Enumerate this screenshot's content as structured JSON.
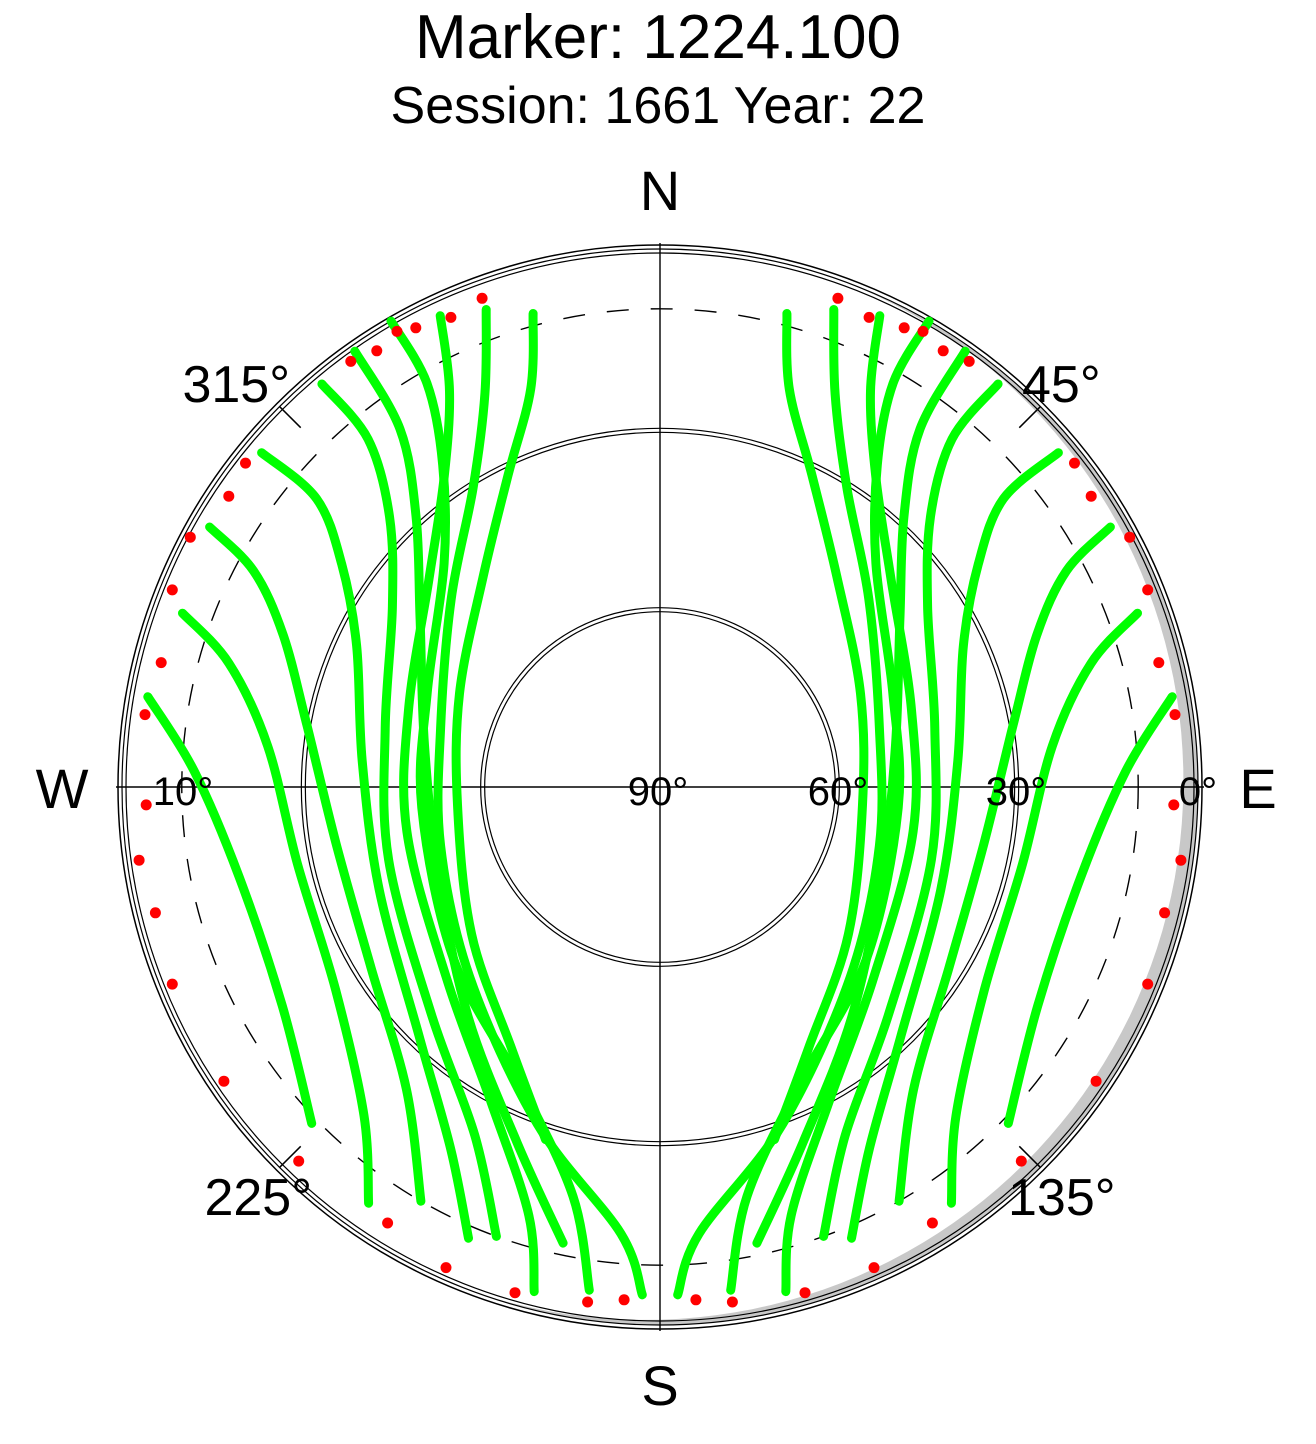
{
  "title": "Marker: 1224.100",
  "subtitle": "Session: 1661 Year: 22",
  "chart_data": {
    "type": "scatter",
    "projection": "polar skyplot (azimuth clockwise from North, elevation 0° at rim to 90° at centre)",
    "compass_labels": {
      "north": "N",
      "east": "E",
      "south": "S",
      "west": "W"
    },
    "azimuth_tick_labels": [
      "45°",
      "135°",
      "225°",
      "315°"
    ],
    "azimuth_ticks_deg": [
      45,
      135,
      225,
      315
    ],
    "elevation_tick_labels_east": [
      "90°",
      "60°",
      "30°",
      "0°"
    ],
    "elevation_ticks_east_deg": [
      90,
      60,
      30,
      0
    ],
    "elevation_tick_label_west": "10°",
    "elevation_tick_west_deg": 10,
    "elevation_circles_deg": [
      0,
      30,
      60
    ],
    "cutoff_dashed_elevation_deg": 10,
    "grid": true,
    "colors": {
      "track": "#00ff00",
      "low_elevation_points": "#ff0000",
      "mask": "#c8c8c8",
      "grid": "#000000"
    },
    "series": [
      {
        "color": "#00ff00",
        "tracks_az_el_deg": [
          {
            "points": [
              [
                30,
                0
              ],
              [
                30,
                12
              ],
              [
                34,
                25
              ],
              [
                44,
                38
              ],
              [
                68,
                48
              ],
              [
                95,
                50
              ],
              [
                130,
                45
              ],
              [
                155,
                35
              ],
              [
                168,
                20
              ],
              [
                172,
                5
              ]
            ]
          },
          {
            "points": [
              [
                25,
                3
              ],
              [
                28,
                15
              ],
              [
                35,
                27
              ],
              [
                48,
                38
              ],
              [
                73,
                46
              ],
              [
                100,
                47
              ],
              [
                132,
                42
              ],
              [
                152,
                30
              ],
              [
                163,
                15
              ],
              [
                166,
                3
              ]
            ]
          },
          {
            "points": [
              [
                40,
                2
              ],
              [
                40,
                14
              ],
              [
                45,
                26
              ],
              [
                56,
                36
              ],
              [
                78,
                43
              ],
              [
                105,
                43
              ],
              [
                135,
                36
              ],
              [
                152,
                24
              ],
              [
                160,
                10
              ]
            ]
          },
          {
            "points": [
              [
                50,
                3
              ],
              [
                50,
                15
              ],
              [
                55,
                25
              ],
              [
                65,
                34
              ],
              [
                85,
                40
              ],
              [
                110,
                40
              ],
              [
                136,
                32
              ],
              [
                150,
                20
              ],
              [
                157,
                8
              ]
            ]
          },
          {
            "points": [
              [
                60,
                3
              ],
              [
                62,
                13
              ],
              [
                68,
                22
              ],
              [
                80,
                30
              ],
              [
                100,
                35
              ],
              [
                122,
                33
              ],
              [
                140,
                24
              ],
              [
                150,
                10
              ]
            ]
          },
          {
            "points": [
              [
                70,
                5
              ],
              [
                74,
                15
              ],
              [
                84,
                24
              ],
              [
                102,
                28
              ],
              [
                122,
                26
              ],
              [
                138,
                16
              ],
              [
                145,
                5
              ]
            ]
          },
          {
            "points": [
              [
                80,
                3
              ],
              [
                88,
                12
              ],
              [
                102,
                18
              ],
              [
                120,
                17
              ],
              [
                134,
                9
              ]
            ]
          },
          {
            "points": [
              [
                20,
                5
              ],
              [
                24,
                18
              ],
              [
                32,
                31
              ],
              [
                48,
                43
              ],
              [
                75,
                52
              ],
              [
                105,
                52
              ],
              [
                135,
                45
              ],
              [
                160,
                30
              ],
              [
                175,
                15
              ],
              [
                178,
                5
              ]
            ]
          },
          {
            "points": [
              [
                15,
                8
              ],
              [
                18,
                20
              ],
              [
                26,
                32
              ],
              [
                40,
                44
              ],
              [
                65,
                53
              ],
              [
                95,
                56
              ],
              [
                128,
                50
              ],
              [
                150,
                40
              ],
              [
                162,
                28
              ]
            ]
          },
          {
            "points": [
              [
                35,
                1
              ],
              [
                36,
                16
              ],
              [
                42,
                29
              ],
              [
                55,
                41
              ],
              [
                80,
                50
              ],
              [
                112,
                50
              ],
              [
                140,
                40
              ],
              [
                158,
                26
              ],
              [
                168,
                12
              ]
            ]
          },
          {
            "points": [
              [
                330,
                0
              ],
              [
                330,
                12
              ],
              [
                326,
                25
              ],
              [
                316,
                38
              ],
              [
                292,
                48
              ],
              [
                265,
                50
              ],
              [
                230,
                45
              ],
              [
                205,
                35
              ],
              [
                192,
                20
              ],
              [
                188,
                5
              ]
            ]
          },
          {
            "points": [
              [
                335,
                3
              ],
              [
                332,
                15
              ],
              [
                325,
                27
              ],
              [
                312,
                38
              ],
              [
                287,
                46
              ],
              [
                260,
                47
              ],
              [
                228,
                42
              ],
              [
                208,
                30
              ],
              [
                197,
                15
              ],
              [
                194,
                3
              ]
            ]
          },
          {
            "points": [
              [
                320,
                2
              ],
              [
                320,
                14
              ],
              [
                315,
                26
              ],
              [
                304,
                36
              ],
              [
                282,
                43
              ],
              [
                255,
                43
              ],
              [
                225,
                36
              ],
              [
                208,
                24
              ],
              [
                200,
                10
              ]
            ]
          },
          {
            "points": [
              [
                310,
                3
              ],
              [
                310,
                15
              ],
              [
                305,
                25
              ],
              [
                295,
                34
              ],
              [
                275,
                40
              ],
              [
                250,
                40
              ],
              [
                224,
                32
              ],
              [
                210,
                20
              ],
              [
                203,
                8
              ]
            ]
          },
          {
            "points": [
              [
                300,
                3
              ],
              [
                298,
                13
              ],
              [
                292,
                22
              ],
              [
                280,
                30
              ],
              [
                260,
                35
              ],
              [
                238,
                33
              ],
              [
                220,
                24
              ],
              [
                210,
                10
              ]
            ]
          },
          {
            "points": [
              [
                290,
                5
              ],
              [
                286,
                15
              ],
              [
                276,
                24
              ],
              [
                258,
                28
              ],
              [
                238,
                26
              ],
              [
                222,
                16
              ],
              [
                215,
                5
              ]
            ]
          },
          {
            "points": [
              [
                280,
                3
              ],
              [
                272,
                12
              ],
              [
                258,
                18
              ],
              [
                240,
                17
              ],
              [
                226,
                9
              ]
            ]
          },
          {
            "points": [
              [
                340,
                5
              ],
              [
                336,
                18
              ],
              [
                328,
                31
              ],
              [
                312,
                43
              ],
              [
                285,
                52
              ],
              [
                255,
                52
              ],
              [
                225,
                45
              ],
              [
                200,
                30
              ],
              [
                185,
                15
              ],
              [
                182,
                5
              ]
            ]
          },
          {
            "points": [
              [
                345,
                8
              ],
              [
                342,
                20
              ],
              [
                334,
                32
              ],
              [
                320,
                44
              ],
              [
                295,
                53
              ],
              [
                265,
                56
              ],
              [
                232,
                50
              ],
              [
                210,
                40
              ],
              [
                198,
                28
              ]
            ]
          },
          {
            "points": [
              [
                325,
                1
              ],
              [
                324,
                16
              ],
              [
                318,
                29
              ],
              [
                305,
                41
              ],
              [
                280,
                50
              ],
              [
                248,
                50
              ],
              [
                220,
                40
              ],
              [
                202,
                26
              ],
              [
                192,
                12
              ]
            ]
          }
        ]
      },
      {
        "color": "#ff0000",
        "points_az_el_deg": [
          [
            20,
            3
          ],
          [
            24,
            4
          ],
          [
            28,
            3
          ],
          [
            30,
            2
          ],
          [
            33,
            3
          ],
          [
            36,
            2
          ],
          [
            52,
            2
          ],
          [
            56,
            3
          ],
          [
            62,
            1
          ],
          [
            68,
            2
          ],
          [
            76,
            4
          ],
          [
            82,
            3
          ],
          [
            92,
            4
          ],
          [
            98,
            2
          ],
          [
            104,
            3
          ],
          [
            112,
            2
          ],
          [
            124,
            2
          ],
          [
            136,
            3
          ],
          [
            148,
            4
          ],
          [
            156,
            2
          ],
          [
            164,
            2
          ],
          [
            172,
            3
          ],
          [
            176,
            4
          ],
          [
            340,
            3
          ],
          [
            336,
            4
          ],
          [
            332,
            3
          ],
          [
            330,
            2
          ],
          [
            327,
            3
          ],
          [
            324,
            2
          ],
          [
            308,
            2
          ],
          [
            304,
            3
          ],
          [
            298,
            1
          ],
          [
            292,
            2
          ],
          [
            284,
            4
          ],
          [
            278,
            3
          ],
          [
            268,
            4
          ],
          [
            262,
            2
          ],
          [
            256,
            3
          ],
          [
            248,
            2
          ],
          [
            236,
            2
          ],
          [
            224,
            3
          ],
          [
            212,
            4
          ],
          [
            204,
            2
          ],
          [
            196,
            2
          ],
          [
            188,
            3
          ],
          [
            184,
            4
          ]
        ]
      }
    ]
  }
}
